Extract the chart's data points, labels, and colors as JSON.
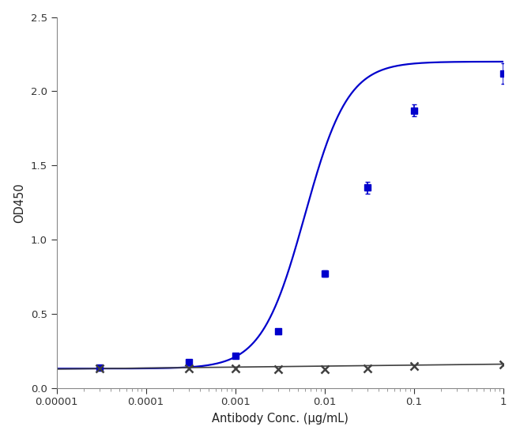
{
  "xlabel": "Antibody Conc. (μg/mL)",
  "ylabel": "OD450",
  "ylim": [
    0.0,
    2.5
  ],
  "yticks": [
    0.0,
    0.5,
    1.0,
    1.5,
    2.0,
    2.5
  ],
  "xlim": [
    1e-05,
    1.0
  ],
  "blue_x": [
    3e-05,
    0.0003,
    0.001,
    0.003,
    0.01,
    0.03,
    0.1,
    1.0
  ],
  "blue_y": [
    0.135,
    0.175,
    0.215,
    0.38,
    0.77,
    1.35,
    1.87,
    2.12
  ],
  "blue_yerr": [
    0.008,
    0.012,
    0.012,
    0.015,
    0.02,
    0.04,
    0.04,
    0.07
  ],
  "black_x": [
    3e-05,
    0.0003,
    0.001,
    0.003,
    0.01,
    0.03,
    0.1,
    1.0
  ],
  "black_y": [
    0.13,
    0.13,
    0.13,
    0.125,
    0.128,
    0.132,
    0.145,
    0.16
  ],
  "black_yerr": [
    0.004,
    0.004,
    0.004,
    0.004,
    0.004,
    0.004,
    0.004,
    0.004
  ],
  "blue_color": "#0000CC",
  "black_color": "#404040",
  "fig_facecolor": "#FFFFFF",
  "ax_facecolor": "#FFFFFF",
  "spine_color": "#888888"
}
